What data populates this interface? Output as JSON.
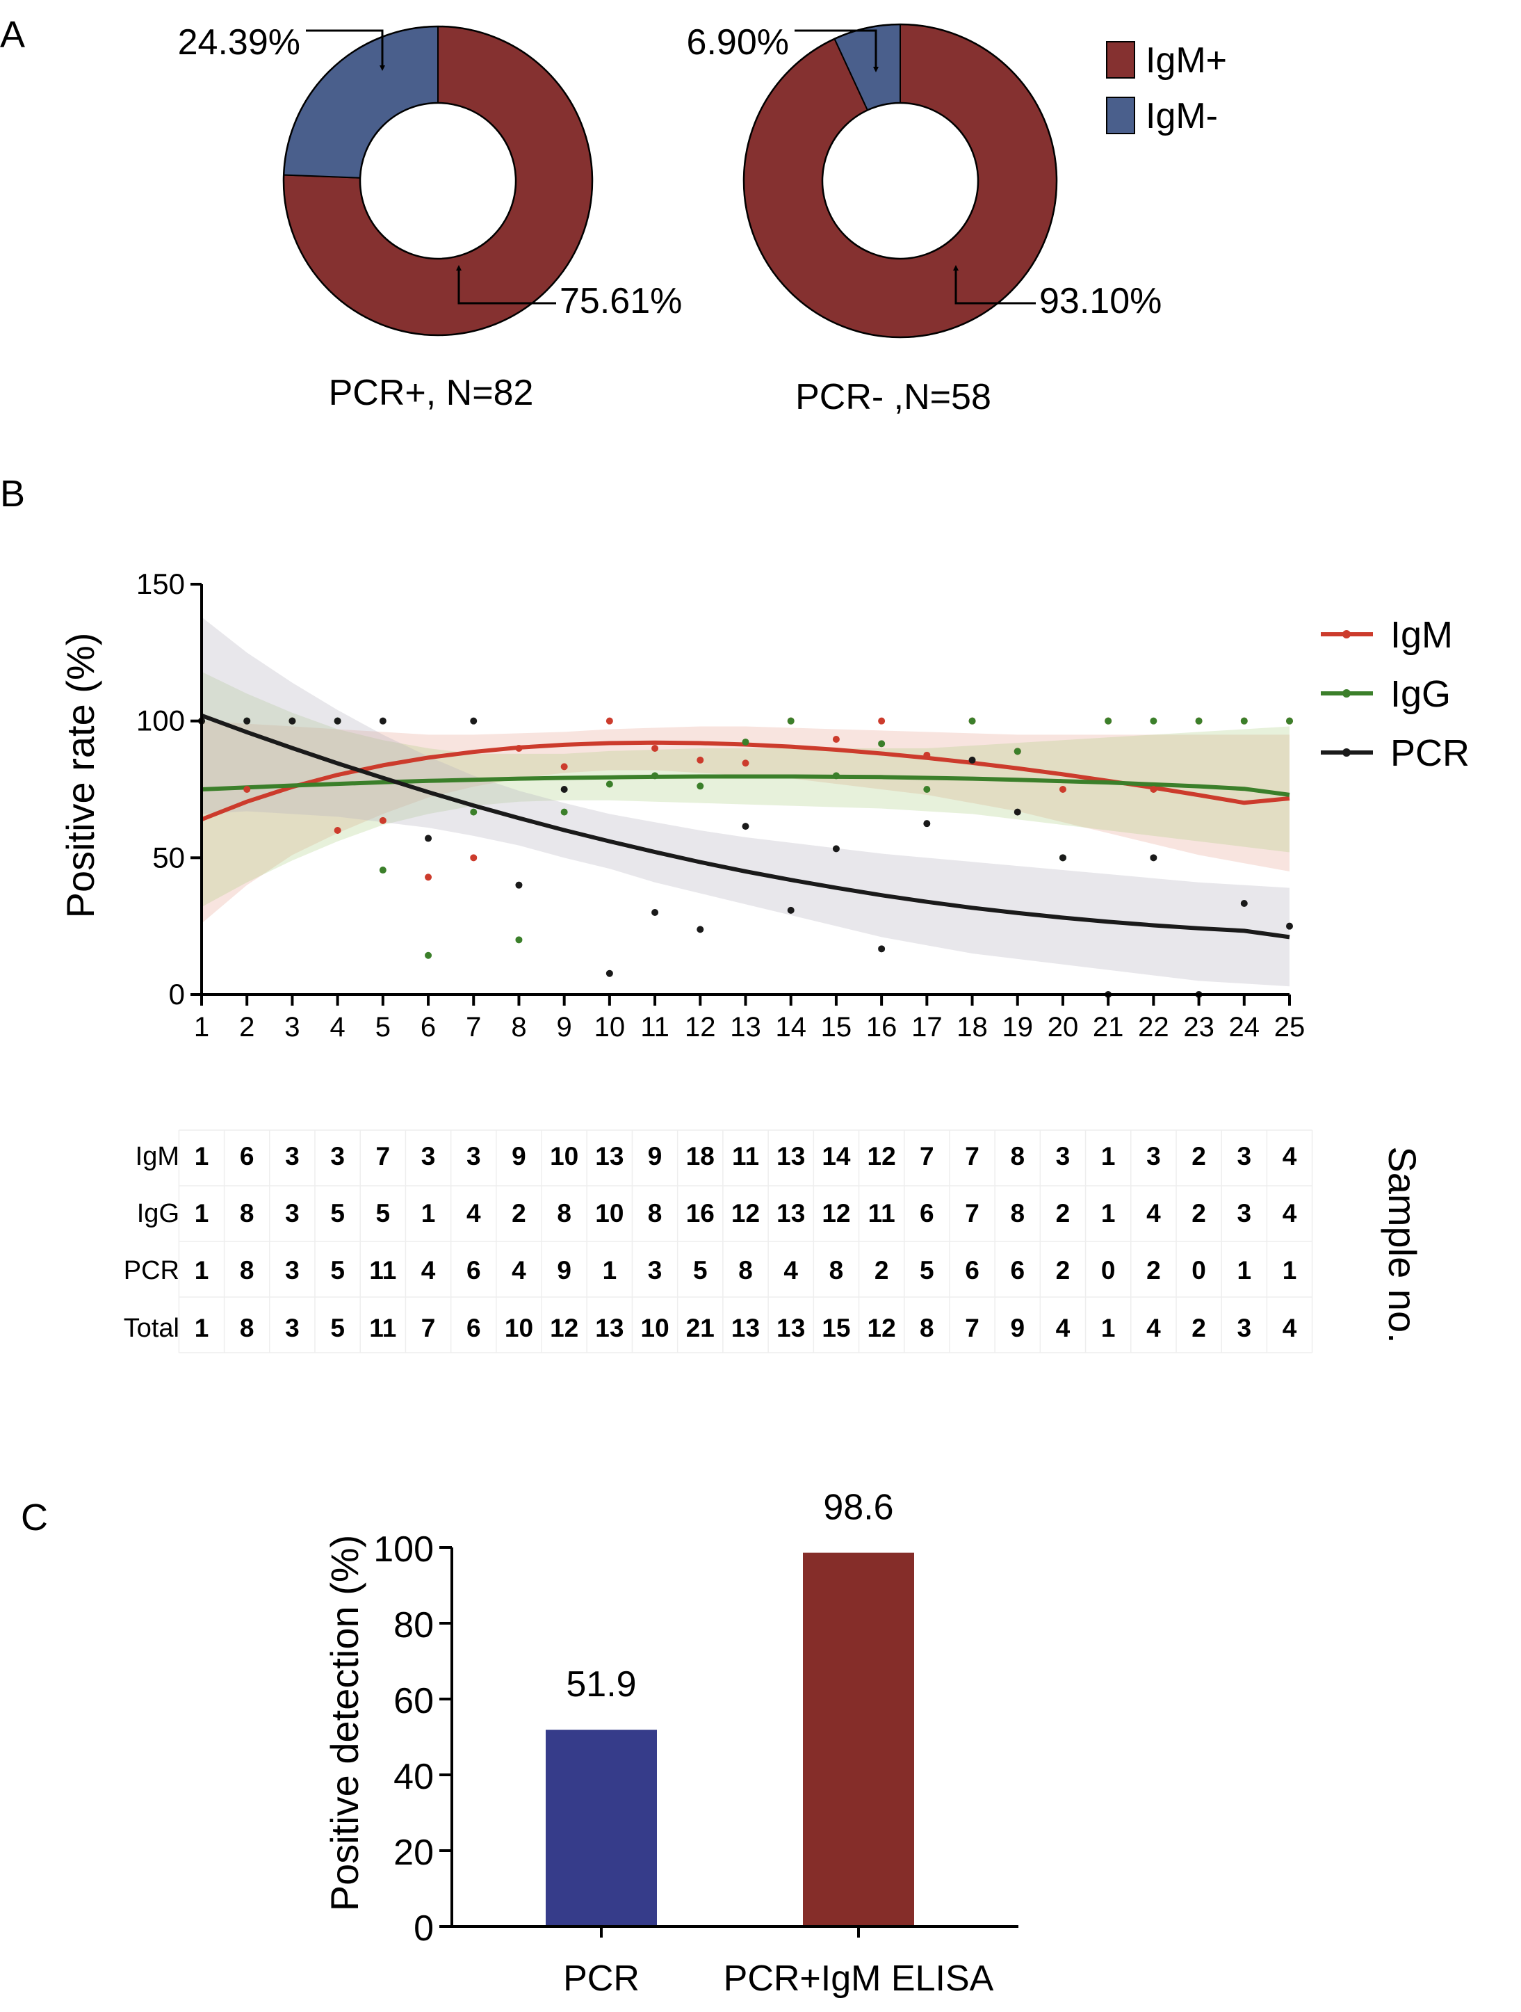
{
  "panels": {
    "a": "A",
    "b": "B",
    "c": "C"
  },
  "colors": {
    "igm_pos": "#853130",
    "igm_neg": "#4a5f8c",
    "line_igm": "#cc3b2c",
    "line_igg": "#3b7f2a",
    "line_pcr": "#1a1a1a",
    "bar_pcr": "#363c8a",
    "bar_combo": "#852d29"
  },
  "chart_data": [
    {
      "type": "pie",
      "variant": "donut",
      "title": "PCR+, N=82",
      "slices": [
        {
          "name": "IgM+",
          "value": 75.61,
          "label": "75.61%"
        },
        {
          "name": "IgM-",
          "value": 24.39,
          "label": "24.39%"
        }
      ],
      "legend": [
        "IgM+",
        "IgM-"
      ],
      "legend_position": "right"
    },
    {
      "type": "pie",
      "variant": "donut",
      "title": "PCR- ,N=58",
      "slices": [
        {
          "name": "IgM+",
          "value": 93.1,
          "label": "93.10%"
        },
        {
          "name": "IgM-",
          "value": 6.9,
          "label": "6.90%"
        }
      ]
    },
    {
      "type": "scatter",
      "ylabel": "Positive rate (%)",
      "xlabel": "",
      "x": [
        1,
        2,
        3,
        4,
        5,
        6,
        7,
        8,
        9,
        10,
        11,
        12,
        13,
        14,
        15,
        16,
        17,
        18,
        19,
        20,
        21,
        22,
        23,
        24,
        25
      ],
      "xlim": [
        1,
        25
      ],
      "ylim": [
        0,
        150
      ],
      "yticks": [
        0,
        50,
        100,
        150
      ],
      "legend_position": "top-right",
      "series": [
        {
          "name": "IgM",
          "points": [
            100,
            75,
            100,
            60,
            63.6,
            42.9,
            50,
            90,
            83.3,
            100,
            90,
            85.7,
            84.6,
            100,
            93.3,
            100,
            87.5,
            100,
            88.9,
            75,
            100,
            75,
            100,
            100,
            100
          ],
          "fit": [
            64,
            70.5,
            75.9,
            80.3,
            83.8,
            86.6,
            88.7,
            90.3,
            91.3,
            91.9,
            92.1,
            91.9,
            91.4,
            90.6,
            89.5,
            88.1,
            86.5,
            84.7,
            82.7,
            80.5,
            78.1,
            75.6,
            72.9,
            70.1,
            71.7
          ],
          "ci_upper": [
            100,
            99,
            98,
            97,
            96,
            95,
            95,
            95.5,
            96,
            97,
            97.5,
            98,
            98,
            97.5,
            97,
            96.5,
            96,
            95.5,
            95,
            95,
            95,
            95,
            95,
            95,
            95
          ],
          "ci_lower": [
            26,
            40,
            51,
            59,
            66,
            72,
            76,
            79,
            81,
            82,
            82,
            81,
            80,
            79,
            77,
            75,
            73,
            70,
            67,
            63,
            59,
            55,
            51,
            48,
            45
          ]
        },
        {
          "name": "IgG",
          "points": [
            100,
            100,
            100,
            100,
            45.5,
            14.3,
            66.7,
            20,
            66.7,
            76.9,
            80,
            76.2,
            92.3,
            100,
            80,
            91.7,
            75,
            100,
            88.9,
            50,
            100,
            100,
            100,
            100,
            100
          ],
          "fit": [
            75,
            75.7,
            76.4,
            77,
            77.6,
            78.1,
            78.5,
            78.9,
            79.2,
            79.4,
            79.6,
            79.7,
            79.7,
            79.7,
            79.6,
            79.5,
            79.2,
            78.9,
            78.5,
            78,
            77.5,
            76.8,
            76.1,
            75.2,
            73
          ],
          "ci_upper": [
            118,
            110,
            103,
            97,
            93,
            90,
            88,
            88,
            88,
            89,
            89.5,
            90,
            90,
            90,
            90,
            90,
            90,
            91,
            92,
            93,
            94,
            95,
            96,
            97,
            98
          ],
          "ci_lower": [
            32,
            41,
            49,
            56,
            62,
            66,
            69,
            70.5,
            71,
            71,
            70.5,
            70,
            69.5,
            69,
            68.5,
            68,
            67,
            66,
            64,
            62,
            60,
            58,
            56,
            54,
            52
          ]
        },
        {
          "name": "PCR",
          "points": [
            100,
            100,
            100,
            100,
            100,
            57.1,
            100,
            40,
            75,
            7.7,
            30,
            23.8,
            61.5,
            30.8,
            53.3,
            16.7,
            62.5,
            85.7,
            66.7,
            50,
            0,
            50,
            0,
            33.3,
            25
          ],
          "fit": [
            102,
            95.9,
            90.1,
            84.5,
            79.2,
            74,
            69.1,
            64.5,
            60.1,
            56,
            52.1,
            48.4,
            45,
            41.9,
            39,
            36.3,
            33.9,
            31.7,
            29.8,
            28.1,
            26.6,
            25.3,
            24.2,
            23.3,
            21
          ],
          "ci_upper": [
            138,
            125,
            114,
            104,
            95,
            87,
            80,
            74.5,
            70,
            66,
            63,
            60,
            57.5,
            55.5,
            53.5,
            51.5,
            50,
            48.5,
            47,
            45.5,
            44,
            42.5,
            41,
            40,
            39
          ],
          "ci_lower": [
            66,
            67,
            66,
            65,
            63,
            61,
            58,
            54.5,
            50,
            46,
            41,
            37,
            33,
            29,
            25,
            21,
            18,
            15,
            13,
            11,
            9,
            7,
            5,
            4,
            3
          ]
        }
      ]
    },
    {
      "type": "table",
      "row_headers": [
        "IgM",
        "IgG",
        "PCR",
        "Total"
      ],
      "side_label": "Sample no.",
      "rows": [
        [
          "1",
          "6",
          "3",
          "3",
          "7",
          "3",
          "3",
          "9",
          "10",
          "13",
          "9",
          "18",
          "11",
          "13",
          "14",
          "12",
          "7",
          "7",
          "8",
          "3",
          "1",
          "3",
          "2",
          "3",
          "4"
        ],
        [
          "1",
          "8",
          "3",
          "5",
          "5",
          "1",
          "4",
          "2",
          "8",
          "10",
          "8",
          "16",
          "12",
          "13",
          "12",
          "11",
          "6",
          "7",
          "8",
          "2",
          "1",
          "4",
          "2",
          "3",
          "4"
        ],
        [
          "1",
          "8",
          "3",
          "5",
          "11",
          "4",
          "6",
          "4",
          "9",
          "1",
          "3",
          "5",
          "8",
          "4",
          "8",
          "2",
          "5",
          "6",
          "6",
          "2",
          "0",
          "2",
          "0",
          "1",
          "1"
        ],
        [
          "1",
          "8",
          "3",
          "5",
          "11",
          "7",
          "6",
          "10",
          "12",
          "13",
          "10",
          "21",
          "13",
          "13",
          "15",
          "12",
          "8",
          "7",
          "9",
          "4",
          "1",
          "4",
          "2",
          "3",
          "4"
        ]
      ]
    },
    {
      "type": "bar",
      "ylabel": "Positive detection (%)",
      "xlabel": "",
      "categories": [
        "PCR",
        "PCR+IgM ELISA"
      ],
      "values": [
        51.9,
        98.6
      ],
      "value_labels": [
        "51.9",
        "98.6"
      ],
      "ylim": [
        0,
        100
      ],
      "yticks": [
        0,
        20,
        40,
        60,
        80,
        100
      ]
    }
  ]
}
